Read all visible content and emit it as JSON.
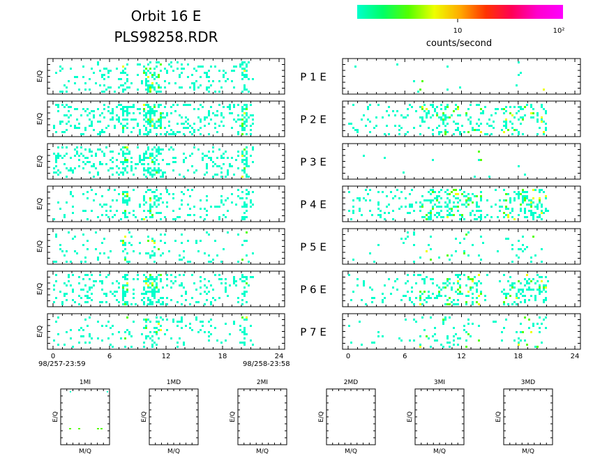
{
  "header": {
    "title_line1": "Orbit  16  E",
    "title_line2": "PLS98258.RDR"
  },
  "colorbar": {
    "tick_mid": "10",
    "tick_max": "10²",
    "label": "counts/second",
    "colors": [
      "#00ffcc",
      "#00ff66",
      "#55ff00",
      "#eeff00",
      "#ffaa00",
      "#ff3300",
      "#ff0055",
      "#ff00cc",
      "#ff00ff"
    ]
  },
  "axes": {
    "ylabel": "E/Q",
    "x_ticks": [
      "0",
      "6",
      "12",
      "18",
      "24"
    ],
    "start_time": "98/257-23:59",
    "end_time": "98/258-23:58"
  },
  "panel_rows": [
    {
      "label": "P  1  E"
    },
    {
      "label": "P  2  E"
    },
    {
      "label": "P  3  E"
    },
    {
      "label": "P  4  E"
    },
    {
      "label": "P  5  E"
    },
    {
      "label": "P  6  E"
    },
    {
      "label": "P  7  E"
    }
  ],
  "bottom_panels": {
    "titles": [
      "1MI",
      "1MD",
      "2MI",
      "2MD",
      "3MI",
      "3MD"
    ],
    "ylabel": "E/Q",
    "xlabel": "M/Q"
  },
  "chart_data": {
    "type": "heatmap",
    "x_range_hours": [
      0,
      24
    ],
    "rows": 7,
    "left_activity": [
      0.32,
      0.5,
      0.45,
      0.3,
      0.18,
      0.38,
      0.22
    ],
    "right_activity": [
      0.01,
      0.22,
      0.01,
      0.3,
      0.06,
      0.22,
      0.08
    ],
    "bands_hours_left": [
      [
        7.2,
        7.8
      ],
      [
        9.5,
        11.5
      ],
      [
        19.8,
        20.6
      ]
    ],
    "bands_hours_right": [
      [
        7.5,
        14.0
      ],
      [
        16.3,
        21.0
      ]
    ]
  }
}
